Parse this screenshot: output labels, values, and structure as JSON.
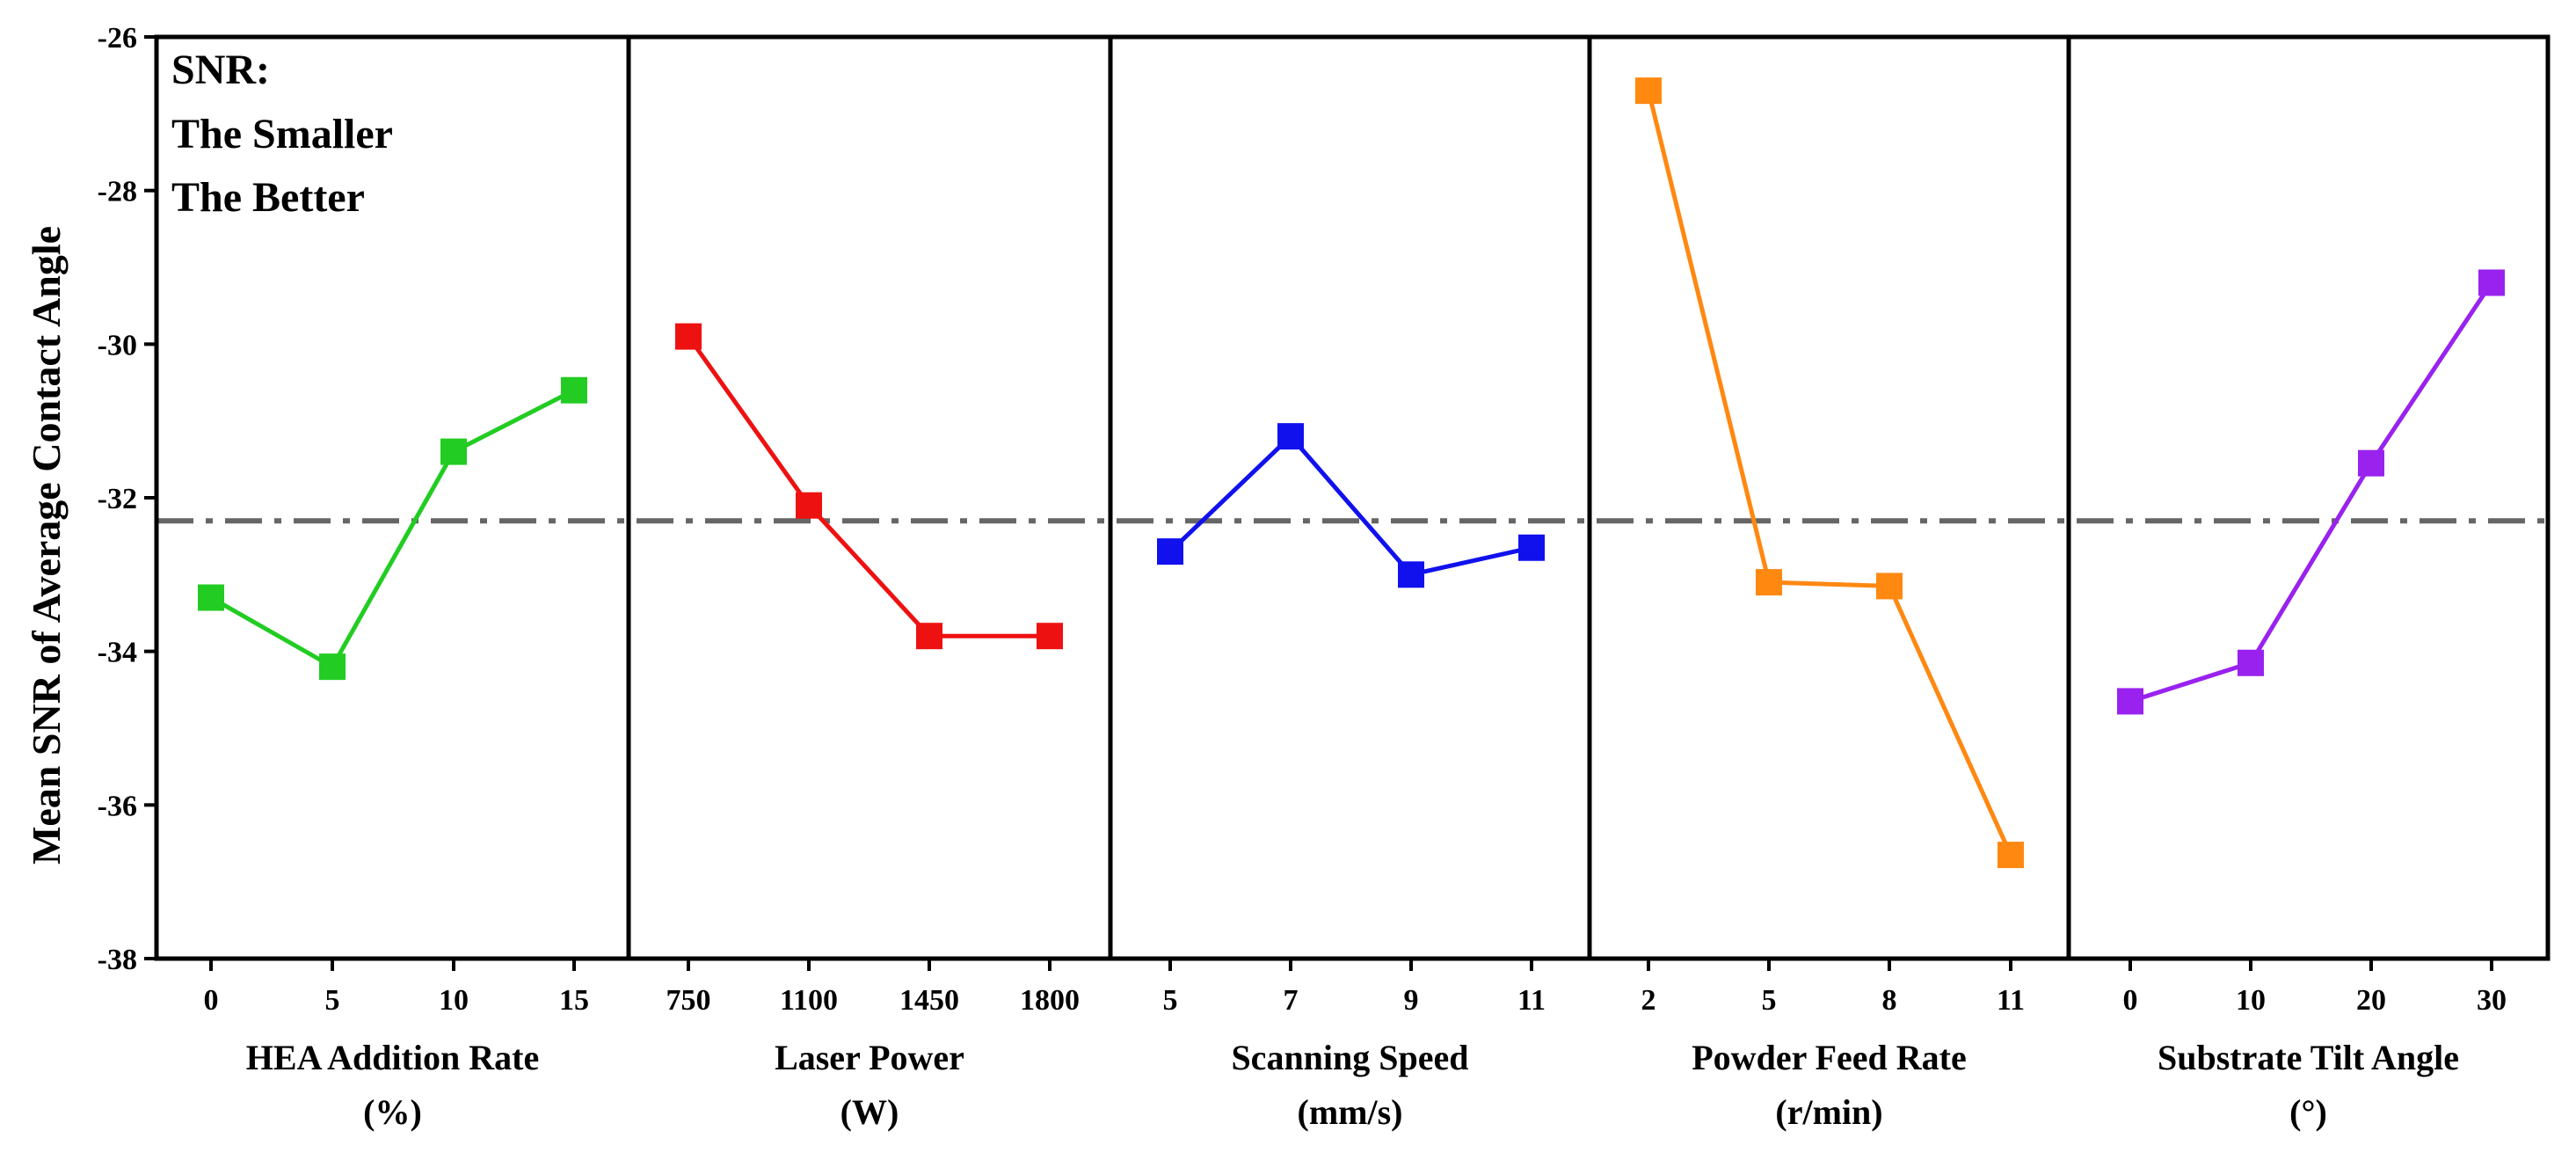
{
  "chart_data": {
    "type": "line",
    "ylabel": "Mean SNR of Average Contact Angle",
    "ylim": [
      -38,
      -26
    ],
    "yticks": [
      -38,
      -36,
      -34,
      -32,
      -30,
      -28,
      -26
    ],
    "reference_line": {
      "value": -32.3,
      "style": "dash-dot",
      "color": "#666666"
    },
    "annotation": [
      "SNR:",
      "The Smaller",
      "The Better"
    ],
    "panels": [
      {
        "name": "hea",
        "xlabel_line1": "HEA Addition Rate",
        "xlabel_line2": "(%)",
        "categories": [
          "0",
          "5",
          "10",
          "15"
        ],
        "values": [
          -33.3,
          -34.2,
          -31.4,
          -30.6
        ],
        "color": "#22cc22"
      },
      {
        "name": "laser",
        "xlabel_line1": "Laser Power",
        "xlabel_line2": "(W)",
        "categories": [
          "750",
          "1100",
          "1450",
          "1800"
        ],
        "values": [
          -29.9,
          -32.1,
          -33.8,
          -33.8
        ],
        "color": "#ee1111"
      },
      {
        "name": "scanning",
        "xlabel_line1": "Scanning Speed",
        "xlabel_line2": "(mm/s)",
        "categories": [
          "5",
          "7",
          "9",
          "11"
        ],
        "values": [
          -32.7,
          -31.2,
          -33.0,
          -32.65
        ],
        "color": "#1111ee"
      },
      {
        "name": "powder",
        "xlabel_line1": "Powder Feed Rate",
        "xlabel_line2": "(r/min)",
        "categories": [
          "2",
          "5",
          "8",
          "11"
        ],
        "values": [
          -26.7,
          -33.1,
          -33.15,
          -36.65
        ],
        "color": "#ff8811"
      },
      {
        "name": "tilt",
        "xlabel_line1": "Substrate Tilt Angle",
        "xlabel_line2": "(°)",
        "categories": [
          "0",
          "10",
          "20",
          "30"
        ],
        "values": [
          -34.65,
          -34.15,
          -31.55,
          -29.2
        ],
        "color": "#9922ee"
      }
    ]
  }
}
